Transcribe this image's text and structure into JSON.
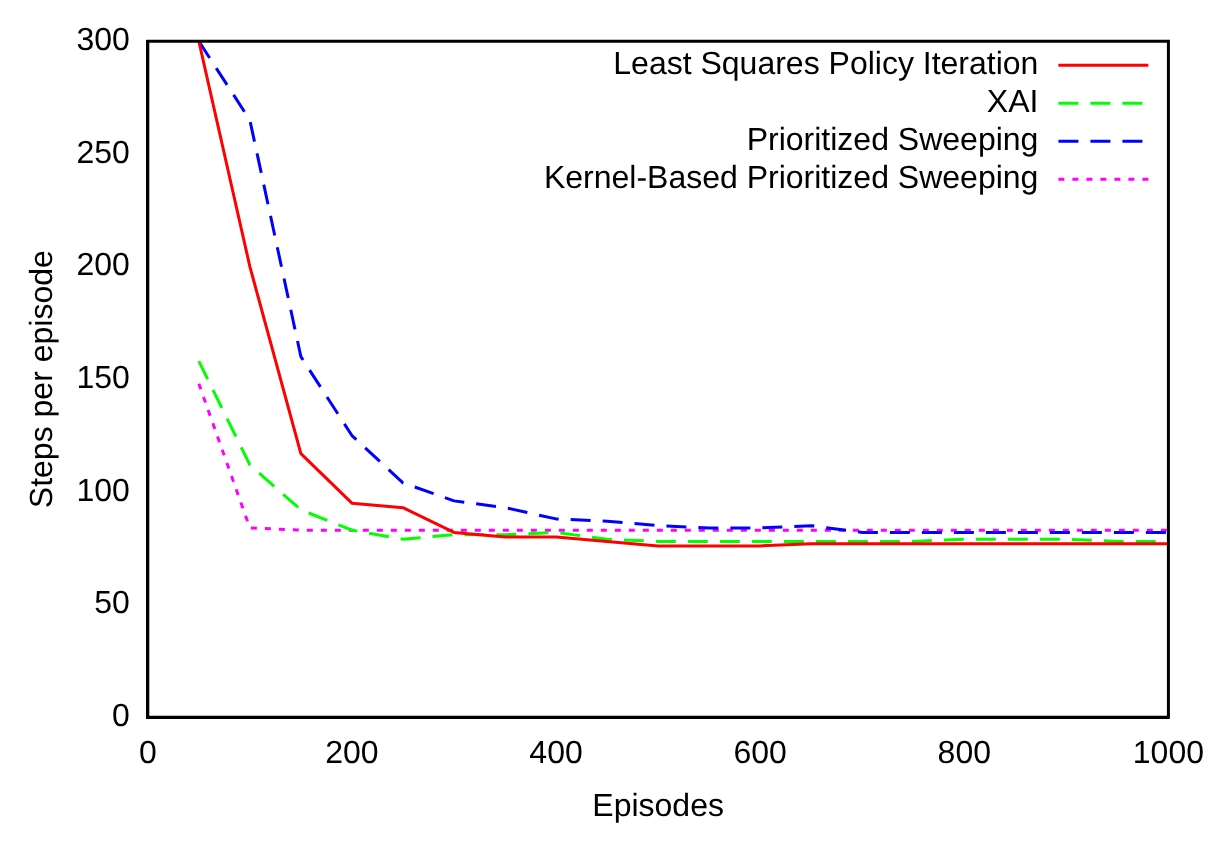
{
  "chart_data": {
    "type": "line",
    "xlabel": "Episodes",
    "ylabel": "Steps per episode",
    "x": [
      50,
      100,
      150,
      200,
      250,
      300,
      350,
      400,
      450,
      500,
      550,
      600,
      650,
      700,
      750,
      800,
      850,
      900,
      950,
      1000
    ],
    "xlim": [
      0,
      1000
    ],
    "xticks": [
      0,
      200,
      400,
      600,
      800,
      1000
    ],
    "ylim": [
      0,
      300
    ],
    "yticks": [
      0,
      50,
      100,
      150,
      200,
      250,
      300
    ],
    "grid": false,
    "legend": "top right",
    "marker": "none",
    "series": [
      {
        "name": "Least Squares Policy Iteration",
        "color": "#ff0000",
        "line_style": "solid",
        "values": [
          300,
          200,
          117,
          95,
          93,
          82,
          80,
          80,
          78,
          76,
          76,
          76,
          77,
          77,
          77,
          77,
          77,
          77,
          77,
          77
        ]
      },
      {
        "name": "XAI",
        "color": "#00ff00",
        "line_style": "dashed",
        "values": [
          158,
          112,
          92,
          83,
          79,
          81,
          81,
          82,
          79,
          78,
          78,
          78,
          78,
          78,
          78,
          79,
          79,
          79,
          78,
          78
        ]
      },
      {
        "name": "Prioritized Sweeping",
        "color": "#0000ff",
        "line_style": "dashed",
        "values": [
          300,
          265,
          160,
          125,
          104,
          96,
          93,
          88,
          87,
          85,
          84,
          84,
          85,
          82,
          82,
          82,
          82,
          82,
          82,
          82
        ]
      },
      {
        "name": "Kernel-Based Prioritized Sweeping",
        "color": "#ff00ff",
        "line_style": "dotted",
        "values": [
          148,
          84,
          83,
          83,
          83,
          83,
          83,
          83,
          83,
          83,
          83,
          83,
          83,
          83,
          83,
          83,
          83,
          83,
          83,
          83
        ]
      }
    ]
  }
}
